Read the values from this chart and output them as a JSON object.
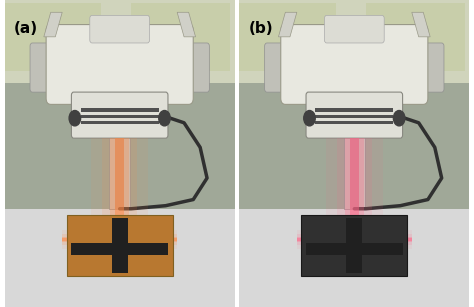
{
  "figsize": [
    4.74,
    3.07
  ],
  "dpi": 100,
  "label_a": "(a)",
  "label_b": "(b)",
  "label_fontsize": 11,
  "label_color": "#000000",
  "label_weight": "bold",
  "bg_color_ceiling": "#d0d4bc",
  "bg_color_window": "#c8ceaa",
  "bg_color_wall": "#a0a898",
  "bg_color_floor": "#d8d8d8",
  "head_color": "#e8e8e0",
  "head_edge": "#999988",
  "handle_color": "#c0c0b8",
  "handle_edge": "#909090",
  "coll_color": "#e0e0d8",
  "coll_edge": "#888880",
  "slat_color": "#505050",
  "dial_color": "#404040",
  "stand_color": "#c8c8c0",
  "stand_edge": "#909090",
  "stand_inner": "#a8a8a0",
  "cable_color": "#303030",
  "arm_color": "#d0d0c8",
  "logo_color": "#dcdcd4",
  "beam_color_a": "#ff8844",
  "beam_color_b": "#ff6688",
  "tool_color_a": "#b87830",
  "tool_edge_a": "#806020",
  "tool_color_b": "#303030",
  "tool_edge_b": "#181818",
  "cross_color": "#202020"
}
